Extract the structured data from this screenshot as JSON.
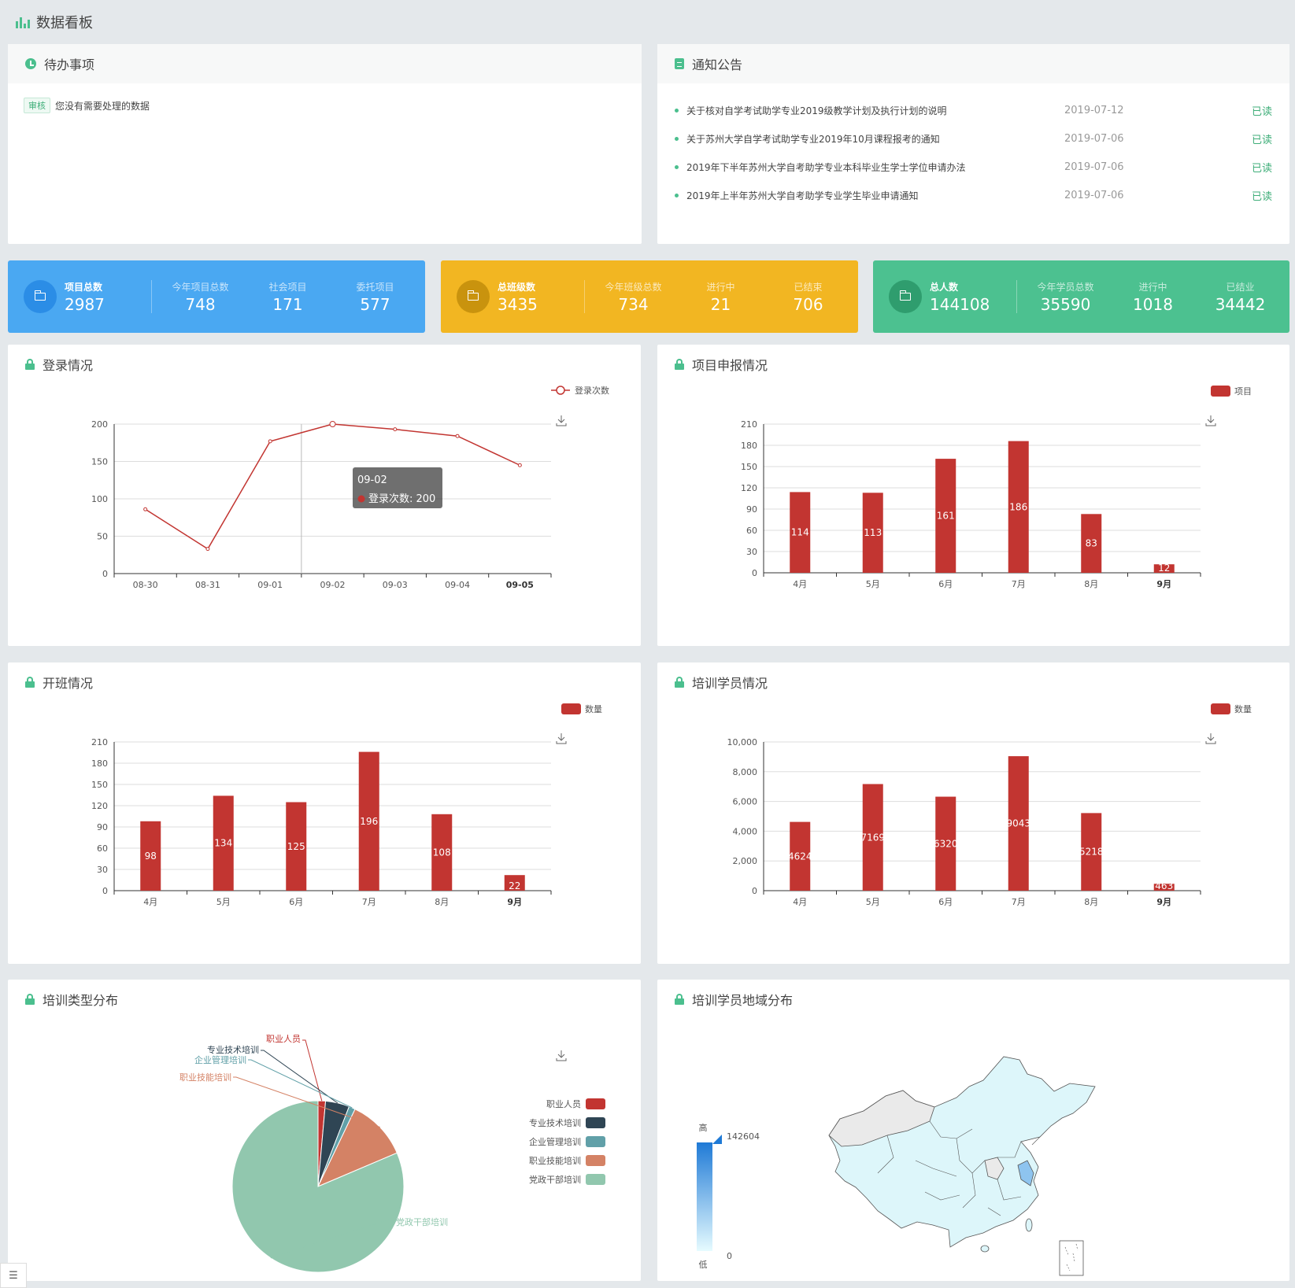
{
  "header": {
    "title": "数据看板"
  },
  "todo": {
    "title": "待办事项",
    "items": [
      {
        "tag": "审核",
        "text": "您没有需要处理的数据"
      }
    ]
  },
  "notices": {
    "title": "通知公告",
    "items": [
      {
        "title": "关于核对自学考试助学专业2019级教学计划及执行计划的说明",
        "date": "2019-07-12",
        "status": "已读"
      },
      {
        "title": "关于苏州大学自学考试助学专业2019年10月课程报考的通知",
        "date": "2019-07-06",
        "status": "已读"
      },
      {
        "title": "2019年下半年苏州大学自考助学专业本科毕业生学士学位申请办法",
        "date": "2019-07-06",
        "status": "已读"
      },
      {
        "title": "2019年上半年苏州大学自考助学专业学生毕业申请通知",
        "date": "2019-07-06",
        "status": "已读"
      }
    ]
  },
  "stats": [
    {
      "color": "#4aa8f2",
      "icon_bg": "#2b8de6",
      "main_label": "项目总数",
      "main_value": "2987",
      "subs": [
        {
          "label": "今年项目总数",
          "value": "748"
        },
        {
          "label": "社会项目",
          "value": "171"
        },
        {
          "label": "委托项目",
          "value": "577"
        }
      ]
    },
    {
      "color": "#f2b622",
      "icon_bg": "#c9930e",
      "main_label": "总班级数",
      "main_value": "3435",
      "subs": [
        {
          "label": "今年班级总数",
          "value": "734"
        },
        {
          "label": "进行中",
          "value": "21"
        },
        {
          "label": "已结束",
          "value": "706"
        }
      ]
    },
    {
      "color": "#4cc190",
      "icon_bg": "#2f9d6e",
      "main_label": "总人数",
      "main_value": "144108",
      "subs": [
        {
          "label": "今年学员总数",
          "value": "35590"
        },
        {
          "label": "进行中",
          "value": "1018"
        },
        {
          "label": "已结业",
          "value": "34442"
        }
      ]
    }
  ],
  "colors": {
    "accent": "#4bbf8e",
    "series": "#c23531"
  },
  "panels": {
    "login": {
      "title": "登录情况"
    },
    "project": {
      "title": "项目申报情况"
    },
    "classes": {
      "title": "开班情况"
    },
    "trainees": {
      "title": "培训学员情况"
    },
    "types": {
      "title": "培训类型分布"
    },
    "region": {
      "title": "培训学员地域分布"
    }
  },
  "chart_data": [
    {
      "id": "login",
      "type": "line",
      "x": [
        "08-30",
        "08-31",
        "09-01",
        "09-02",
        "09-03",
        "09-04",
        "09-05"
      ],
      "series": [
        {
          "name": "登录次数",
          "values": [
            86,
            33,
            177,
            200,
            193,
            184,
            145
          ]
        }
      ],
      "ylim": [
        0,
        200
      ],
      "yticks": [
        0,
        50,
        100,
        150,
        200
      ],
      "legend": "top-right",
      "grid": true,
      "tooltip": {
        "title": "09-02",
        "text": "登录次数: 200"
      }
    },
    {
      "id": "project",
      "type": "bar",
      "categories": [
        "4月",
        "5月",
        "6月",
        "7月",
        "8月",
        "9月"
      ],
      "series": [
        {
          "name": "项目",
          "values": [
            114,
            113,
            161,
            186,
            83,
            12
          ]
        }
      ],
      "ylim": [
        0,
        210
      ],
      "yticks": [
        0,
        30,
        60,
        90,
        120,
        150,
        180,
        210
      ],
      "legend": "top-right",
      "grid": true
    },
    {
      "id": "classes",
      "type": "bar",
      "categories": [
        "4月",
        "5月",
        "6月",
        "7月",
        "8月",
        "9月"
      ],
      "series": [
        {
          "name": "数量",
          "values": [
            98,
            134,
            125,
            196,
            108,
            22
          ]
        }
      ],
      "ylim": [
        0,
        210
      ],
      "yticks": [
        0,
        30,
        60,
        90,
        120,
        150,
        180,
        210
      ],
      "legend": "top-right",
      "grid": true
    },
    {
      "id": "trainees",
      "type": "bar",
      "categories": [
        "4月",
        "5月",
        "6月",
        "7月",
        "8月",
        "9月"
      ],
      "series": [
        {
          "name": "数量",
          "values": [
            4624,
            7169,
            6320,
            9043,
            5218,
            463
          ]
        }
      ],
      "ylim": [
        0,
        10000
      ],
      "yticks": [
        "0",
        "2,000",
        "4,000",
        "6,000",
        "8,000",
        "10,000"
      ],
      "legend": "top-right",
      "grid": true
    },
    {
      "id": "types",
      "type": "pie",
      "slices": [
        {
          "name": "职业人员",
          "value": 1.4,
          "color": "#c23531"
        },
        {
          "name": "专业技术培训",
          "value": 4.5,
          "color": "#2f4554"
        },
        {
          "name": "企业管理培训",
          "value": 1.2,
          "color": "#61a0a8"
        },
        {
          "name": "职业技能培训",
          "value": 11.5,
          "color": "#d48265"
        },
        {
          "name": "党政干部培训",
          "value": 81.4,
          "color": "#91c7ae"
        }
      ],
      "legend": "right"
    },
    {
      "id": "region",
      "type": "heatmap",
      "visual_map": {
        "max": "142604",
        "min": "0",
        "high_label": "高",
        "low_label": "低"
      }
    }
  ]
}
